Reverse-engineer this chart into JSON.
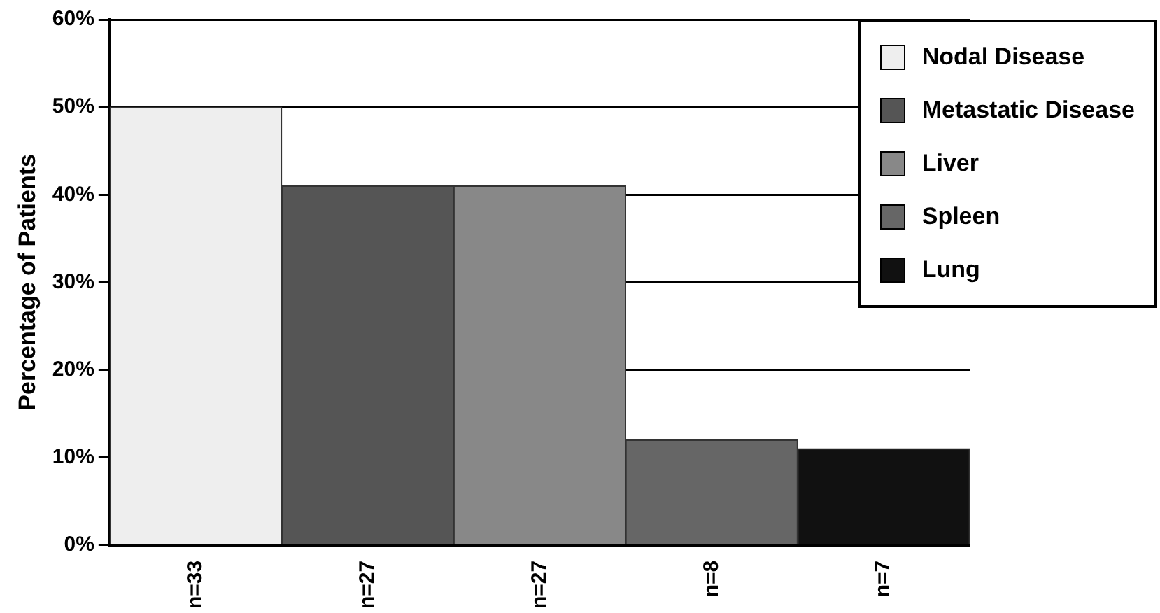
{
  "chart_data": {
    "type": "bar",
    "ylabel": "Percentage of Patients",
    "categories": [
      "n=33",
      "n=27",
      "n=27",
      "n=8",
      "n=7"
    ],
    "series": [
      {
        "name": "Nodal Disease",
        "color": "#eeeeee",
        "values": [
          50,
          null,
          null,
          null,
          null
        ]
      },
      {
        "name": "Metastatic Disease",
        "color": "#555555",
        "values": [
          null,
          41,
          null,
          null,
          null
        ]
      },
      {
        "name": "Liver",
        "color": "#888888",
        "values": [
          null,
          null,
          41,
          null,
          null
        ]
      },
      {
        "name": "Spleen",
        "color": "#666666",
        "values": [
          null,
          null,
          null,
          12,
          null
        ]
      },
      {
        "name": "Lung",
        "color": "#111111",
        "values": [
          null,
          null,
          null,
          null,
          11
        ]
      }
    ],
    "ylim": [
      0,
      60
    ],
    "yticks": [
      {
        "value": 0,
        "label": "0%"
      },
      {
        "value": 10,
        "label": "10%"
      },
      {
        "value": 20,
        "label": "20%"
      },
      {
        "value": 30,
        "label": "30%"
      },
      {
        "value": 40,
        "label": "40%"
      },
      {
        "value": 50,
        "label": "50%"
      },
      {
        "value": 60,
        "label": "60%"
      }
    ],
    "grid": "y",
    "legend": "top right"
  }
}
